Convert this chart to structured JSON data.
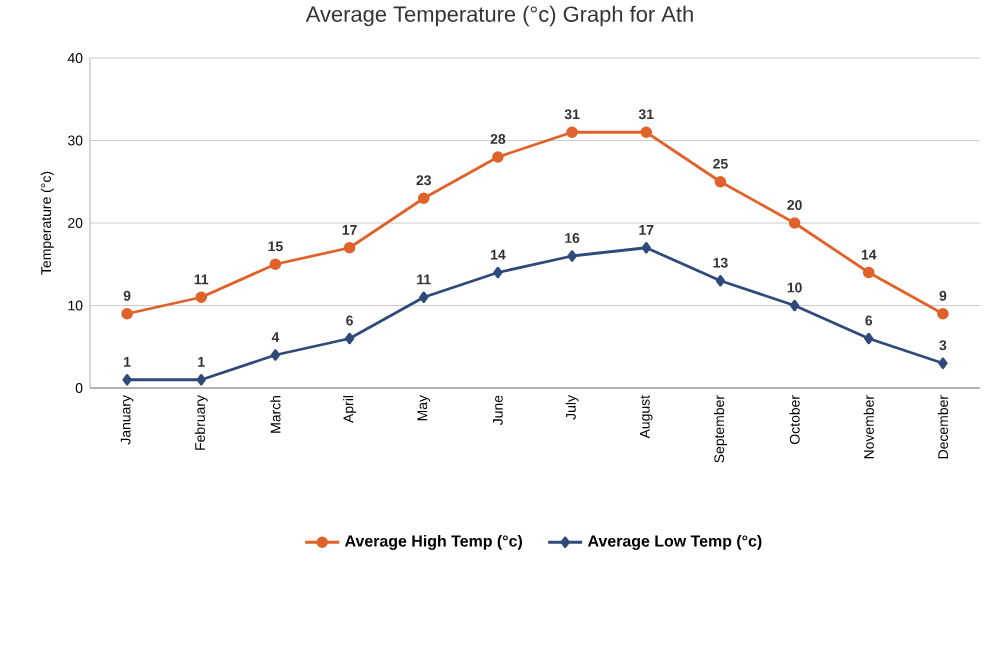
{
  "chart_data": {
    "type": "line",
    "title": "Average Temperature (°c) Graph for Ath",
    "ylabel": "Temperature (°c)",
    "categories": [
      "January",
      "February",
      "March",
      "April",
      "May",
      "June",
      "July",
      "August",
      "September",
      "October",
      "November",
      "December"
    ],
    "series": [
      {
        "name": "Average High Temp (°c)",
        "color": "#e0622a",
        "marker": "circle",
        "values": [
          9,
          11,
          15,
          17,
          23,
          28,
          31,
          31,
          25,
          20,
          14,
          9
        ]
      },
      {
        "name": "Average Low Temp (°c)",
        "color": "#2f4a7a",
        "marker": "diamond",
        "values": [
          1,
          1,
          4,
          6,
          11,
          14,
          16,
          17,
          13,
          10,
          6,
          3
        ]
      }
    ],
    "ylim": [
      0,
      40
    ],
    "yticks": [
      0,
      10,
      20,
      30,
      40
    ],
    "grid": "y",
    "legend": "bottom",
    "data_labels": true
  }
}
